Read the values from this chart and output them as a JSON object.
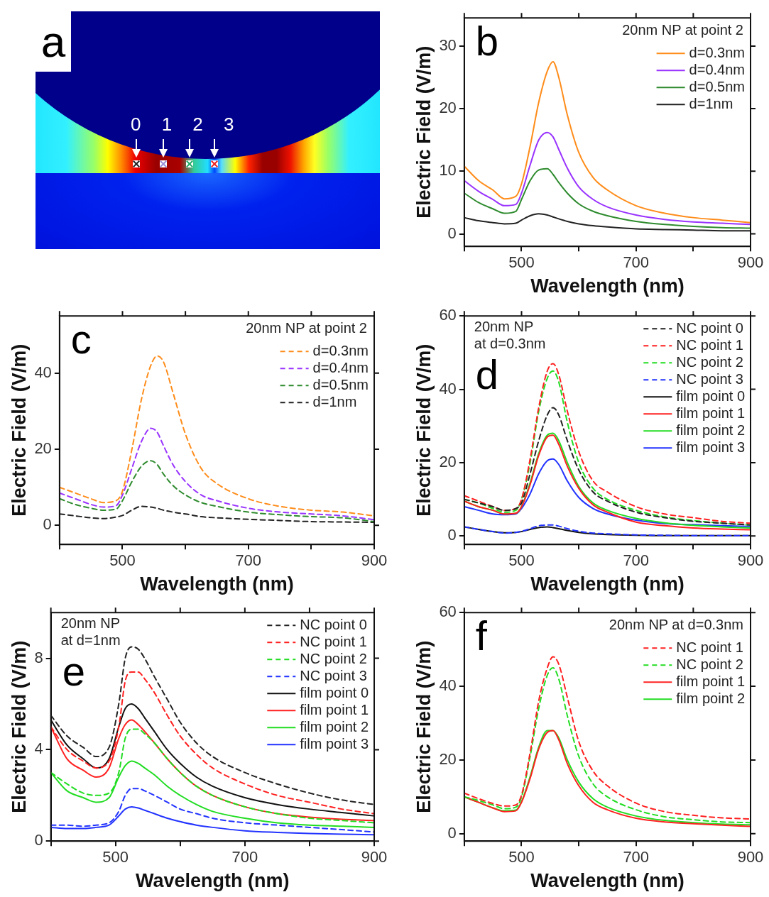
{
  "chart_data": [
    {
      "type": "other",
      "title": "a",
      "annotations": [
        "0 1 2 3"
      ]
    },
    {
      "type": "line",
      "title": "b",
      "subtitle": "20nm NP at point 2",
      "xlabel": "Wavelength (nm)",
      "ylabel": "Electric Field (V/m)",
      "xlim": [
        400,
        900
      ],
      "ylim": [
        -2,
        34.5
      ],
      "xticks": [
        {
          "value": 400,
          "label": null
        },
        500,
        {
          "value": 600,
          "label": null
        },
        700,
        {
          "value": 800,
          "label": null
        },
        900
      ],
      "yticks": [
        0,
        10,
        20,
        30
      ],
      "grid": false,
      "legend": "top right",
      "marker": "none",
      "x": [
        400,
        425,
        450,
        470,
        490,
        500,
        515,
        530,
        545,
        555,
        565,
        580,
        600,
        625,
        650,
        700,
        750,
        800,
        850,
        900
      ],
      "series": [
        {
          "name": "d=0.3nm",
          "color": "#ff8c1a",
          "line_style": "solid",
          "values": [
            10.8,
            8.5,
            7,
            5.6,
            6,
            8,
            14,
            21,
            26,
            27.5,
            25,
            19,
            13,
            9,
            7,
            4.5,
            3.3,
            2.6,
            2.2,
            1.8
          ]
        },
        {
          "name": "d=0.4nm",
          "color": "#9933ff",
          "line_style": "solid",
          "values": [
            8.5,
            6.8,
            5.5,
            4.5,
            4.7,
            6.5,
            11,
            15,
            16.2,
            15.5,
            13.5,
            10.5,
            7.5,
            5.5,
            4.3,
            3,
            2.3,
            1.9,
            1.7,
            1.5
          ]
        },
        {
          "name": "d=0.5nm",
          "color": "#2e8b2e",
          "line_style": "solid",
          "values": [
            6.5,
            5,
            4,
            3.3,
            3.6,
            5.5,
            8.5,
            10.2,
            10.4,
            9.5,
            8.2,
            6.5,
            4.8,
            3.6,
            2.9,
            2,
            1.5,
            1.2,
            1,
            0.9
          ]
        },
        {
          "name": "d=1nm",
          "color": "#222222",
          "line_style": "solid",
          "values": [
            2.6,
            2.1,
            1.8,
            1.6,
            1.7,
            2.2,
            2.9,
            3.2,
            3,
            2.7,
            2.4,
            2,
            1.6,
            1.3,
            1.1,
            0.8,
            0.7,
            0.6,
            0.5,
            0.5
          ]
        }
      ]
    },
    {
      "type": "line",
      "title": "c",
      "subtitle": "20nm NP at point 2",
      "xlabel": "Wavelength (nm)",
      "ylabel": "Electric Field (V/m)",
      "xlim": [
        400,
        900
      ],
      "ylim": [
        -5,
        55
      ],
      "xticks": [
        {
          "value": 400,
          "label": null
        },
        500,
        {
          "value": 600,
          "label": null
        },
        700,
        {
          "value": 800,
          "label": null
        },
        900
      ],
      "yticks": [
        0,
        20,
        40
      ],
      "grid": false,
      "legend": "top right",
      "marker": "none",
      "x": [
        400,
        425,
        450,
        470,
        490,
        500,
        515,
        530,
        545,
        555,
        565,
        580,
        600,
        625,
        650,
        700,
        750,
        800,
        850,
        900
      ],
      "series": [
        {
          "name": "d=0.3nm",
          "color": "#ff8c1a",
          "line_style": "dashed",
          "values": [
            10,
            8.5,
            7,
            6,
            6.5,
            9,
            20,
            33,
            42,
            44.5,
            43,
            35,
            24,
            15,
            11,
            7,
            5,
            4,
            3.5,
            2.5
          ]
        },
        {
          "name": "d=0.4nm",
          "color": "#9933ff",
          "line_style": "dashed",
          "values": [
            8.5,
            7,
            5.5,
            4.8,
            5.2,
            8,
            15,
            22,
            25.5,
            24.5,
            21,
            16,
            11.5,
            8,
            6.5,
            4.5,
            3.5,
            3,
            2.5,
            1.5
          ]
        },
        {
          "name": "d=0.5nm",
          "color": "#2e8b2e",
          "line_style": "dashed",
          "values": [
            7,
            5.5,
            4.5,
            4,
            4.3,
            6.5,
            11.5,
            15.5,
            17,
            16,
            13.5,
            10.5,
            8,
            6,
            5,
            3.5,
            2.8,
            2.3,
            2,
            1
          ]
        },
        {
          "name": "d=1nm",
          "color": "#222222",
          "line_style": "dashed",
          "values": [
            3,
            2.5,
            2,
            1.8,
            2.2,
            2.6,
            4,
            5,
            4.8,
            4.5,
            4,
            3.5,
            3,
            2.3,
            2,
            1.6,
            1.3,
            1,
            0.9,
            0.8
          ]
        }
      ]
    },
    {
      "type": "line",
      "title": "d",
      "subtitle": "20nm NP\nat d=0.3nm",
      "xlabel": "Wavelength (nm)",
      "ylabel": "Electric Field (V/m)",
      "xlim": [
        400,
        900
      ],
      "ylim": [
        -2.3,
        60
      ],
      "xticks": [
        {
          "value": 400,
          "label": null
        },
        500,
        {
          "value": 600,
          "label": null
        },
        700,
        {
          "value": 800,
          "label": null
        },
        900
      ],
      "yticks": [
        0,
        20,
        40,
        60
      ],
      "grid": false,
      "legend": "top right",
      "marker": "none",
      "x": [
        400,
        425,
        450,
        470,
        490,
        500,
        515,
        530,
        545,
        555,
        565,
        580,
        600,
        625,
        650,
        700,
        750,
        800,
        850,
        900
      ],
      "series": [
        {
          "name": "NC point 0",
          "color": "#222222",
          "line_style": "dashed",
          "values": [
            10,
            9,
            8,
            7,
            7.5,
            9,
            17,
            26,
            33,
            35,
            33,
            26,
            18,
            12,
            9.5,
            6.5,
            5,
            4,
            3.5,
            3
          ]
        },
        {
          "name": "NC point 1",
          "color": "#ff2020",
          "line_style": "dashed",
          "values": [
            11,
            9.5,
            8,
            7,
            7.5,
            10,
            21,
            35,
            45,
            47,
            44,
            34,
            23,
            15,
            12,
            8,
            6,
            5,
            4,
            3.5
          ]
        },
        {
          "name": "NC point 2",
          "color": "#22dd22",
          "line_style": "dashed",
          "values": [
            10,
            9,
            7.5,
            6.5,
            7,
            10,
            20,
            34,
            43,
            45,
            42,
            31,
            20,
            13,
            10,
            7,
            5.2,
            4.2,
            3.5,
            3
          ]
        },
        {
          "name": "NC point 3",
          "color": "#2233ff",
          "line_style": "dashed",
          "values": [
            2.5,
            1.8,
            1.2,
            0.8,
            1,
            1.3,
            2,
            2.8,
            3,
            3,
            2.7,
            2,
            1.3,
            0.8,
            0.6,
            0.3,
            0.2,
            0.1,
            0.1,
            0.1
          ]
        },
        {
          "name": "film point 0",
          "color": "#111111",
          "line_style": "solid",
          "values": [
            2.5,
            1.8,
            1.2,
            0.9,
            1,
            1.2,
            1.8,
            2.3,
            2.5,
            2.3,
            2,
            1.5,
            1,
            0.6,
            0.4,
            0.2,
            0.1,
            0.1,
            0.1,
            0.1
          ]
        },
        {
          "name": "film point 1",
          "color": "#ff2020",
          "line_style": "solid",
          "values": [
            9.5,
            8,
            7,
            6,
            6.2,
            8,
            14,
            22,
            27,
            27.5,
            25,
            19,
            13,
            8.5,
            6.5,
            3.8,
            2.8,
            2.2,
            1.9,
            1.7
          ]
        },
        {
          "name": "film point 2",
          "color": "#22dd22",
          "line_style": "solid",
          "values": [
            9.5,
            8,
            7,
            6,
            6.2,
            8,
            14.5,
            22.5,
            27.5,
            28,
            26,
            20,
            13.5,
            9,
            7,
            4.8,
            3.6,
            2.9,
            2.5,
            2.2
          ]
        },
        {
          "name": "film point 3",
          "color": "#2233ff",
          "line_style": "solid",
          "values": [
            8,
            7,
            6,
            5.8,
            6,
            7.5,
            11.5,
            17,
            20.5,
            21,
            19.5,
            15,
            10.5,
            7.5,
            6,
            4.3,
            3.4,
            3.1,
            2.8,
            2.6
          ]
        }
      ]
    },
    {
      "type": "line",
      "title": "e",
      "subtitle": "20nm NP\nat d=1nm",
      "xlabel": "Wavelength (nm)",
      "ylabel": "Electric Field (V/m)",
      "xlim": [
        400,
        900
      ],
      "ylim": [
        0,
        10
      ],
      "xticks": [
        {
          "value": 400,
          "label": null
        },
        500,
        {
          "value": 600,
          "label": null
        },
        700,
        {
          "value": 800,
          "label": null
        },
        900
      ],
      "yticks": [
        0,
        4,
        8
      ],
      "grid": false,
      "legend": "top right",
      "marker": "none",
      "x": [
        400,
        425,
        450,
        470,
        490,
        505,
        515,
        525,
        535,
        545,
        560,
        580,
        600,
        625,
        650,
        700,
        750,
        800,
        850,
        900
      ],
      "series": [
        {
          "name": "NC point 0",
          "color": "#222222",
          "line_style": "dashed",
          "values": [
            5.5,
            4.6,
            4.1,
            3.7,
            4.1,
            6,
            8,
            8.5,
            8.4,
            8,
            7.2,
            6.2,
            5.2,
            4.3,
            3.7,
            3,
            2.5,
            2.1,
            1.8,
            1.6
          ]
        },
        {
          "name": "NC point 1",
          "color": "#ff2020",
          "line_style": "dashed",
          "values": [
            5,
            4,
            3.5,
            3.2,
            3.5,
            5,
            7,
            7.4,
            7.4,
            7.1,
            6.5,
            5.5,
            4.6,
            3.8,
            3.2,
            2.5,
            2,
            1.7,
            1.4,
            1.2
          ]
        },
        {
          "name": "NC point 2",
          "color": "#22dd22",
          "line_style": "dashed",
          "values": [
            3,
            2.5,
            2.1,
            2,
            2.1,
            3,
            4.5,
            4.9,
            4.9,
            4.7,
            4.3,
            3.6,
            3,
            2.4,
            2,
            1.5,
            1.2,
            1,
            0.9,
            0.8
          ]
        },
        {
          "name": "NC point 3",
          "color": "#2233ff",
          "line_style": "dashed",
          "values": [
            0.7,
            0.7,
            0.65,
            0.7,
            0.8,
            1.3,
            2,
            2.3,
            2.3,
            2.2,
            2,
            1.7,
            1.4,
            1.2,
            1,
            0.8,
            0.7,
            0.6,
            0.5,
            0.4
          ]
        },
        {
          "name": "film point 0",
          "color": "#111111",
          "line_style": "solid",
          "values": [
            5.3,
            4.2,
            3.6,
            3.2,
            3.6,
            5,
            5.8,
            6,
            5.8,
            5.4,
            4.8,
            4,
            3.4,
            2.8,
            2.4,
            1.9,
            1.6,
            1.4,
            1.25,
            1.1
          ]
        },
        {
          "name": "film point 1",
          "color": "#ff2020",
          "line_style": "solid",
          "values": [
            5,
            3.6,
            3.1,
            2.8,
            3.2,
            4.5,
            5.1,
            5.3,
            5.1,
            4.8,
            4.3,
            3.6,
            3,
            2.4,
            2,
            1.5,
            1.2,
            1.05,
            0.95,
            0.9
          ]
        },
        {
          "name": "film point 2",
          "color": "#22dd22",
          "line_style": "solid",
          "values": [
            3,
            2.2,
            1.9,
            1.7,
            1.9,
            2.8,
            3.3,
            3.5,
            3.4,
            3.2,
            2.9,
            2.4,
            2,
            1.6,
            1.3,
            1,
            0.8,
            0.7,
            0.65,
            0.6
          ]
        },
        {
          "name": "film point 3",
          "color": "#2233ff",
          "line_style": "solid",
          "values": [
            0.6,
            0.55,
            0.55,
            0.6,
            0.7,
            1.1,
            1.4,
            1.5,
            1.45,
            1.35,
            1.2,
            1,
            0.85,
            0.7,
            0.6,
            0.45,
            0.38,
            0.33,
            0.3,
            0.28
          ]
        }
      ]
    },
    {
      "type": "line",
      "title": "f",
      "subtitle": "20nm NP at d=0.3nm",
      "xlabel": "Wavelength (nm)",
      "ylabel": "Electric Field (V/m)",
      "xlim": [
        400,
        900
      ],
      "ylim": [
        -2,
        60
      ],
      "xticks": [
        {
          "value": 400,
          "label": null
        },
        500,
        {
          "value": 600,
          "label": null
        },
        700,
        {
          "value": 800,
          "label": null
        },
        900
      ],
      "yticks": [
        0,
        20,
        40,
        60
      ],
      "grid": false,
      "legend": "top right",
      "marker": "none",
      "x": [
        400,
        425,
        450,
        470,
        490,
        500,
        515,
        530,
        545,
        555,
        565,
        580,
        600,
        625,
        650,
        700,
        750,
        800,
        850,
        900
      ],
      "series": [
        {
          "name": "NC point 1",
          "color": "#ff2020",
          "line_style": "dashed",
          "values": [
            11,
            9.5,
            8.2,
            7.5,
            7.8,
            10.5,
            22,
            36,
            45,
            48,
            46,
            37,
            25,
            17,
            13,
            8.3,
            6,
            5,
            4.3,
            4
          ]
        },
        {
          "name": "NC point 2",
          "color": "#22dd22",
          "line_style": "dashed",
          "values": [
            10,
            9,
            7.8,
            6.8,
            7.2,
            10,
            21,
            34,
            43,
            45,
            42,
            32,
            21,
            13.5,
            10,
            6.5,
            4.6,
            3.8,
            3.2,
            3
          ]
        },
        {
          "name": "film point 1",
          "color": "#ff2020",
          "line_style": "solid",
          "values": [
            10,
            8.5,
            7,
            6,
            6.2,
            8.5,
            15,
            23,
            27.5,
            28,
            25.5,
            19,
            13,
            8.5,
            6.5,
            4.2,
            3.2,
            2.7,
            2.3,
            2
          ]
        },
        {
          "name": "film point 2",
          "color": "#22dd22",
          "line_style": "solid",
          "values": [
            10,
            8.5,
            7,
            6.2,
            6.4,
            8.7,
            15.5,
            23.5,
            28,
            28,
            26,
            20,
            14,
            9.5,
            7.2,
            4.8,
            3.6,
            3,
            2.6,
            2.4
          ]
        }
      ]
    }
  ]
}
